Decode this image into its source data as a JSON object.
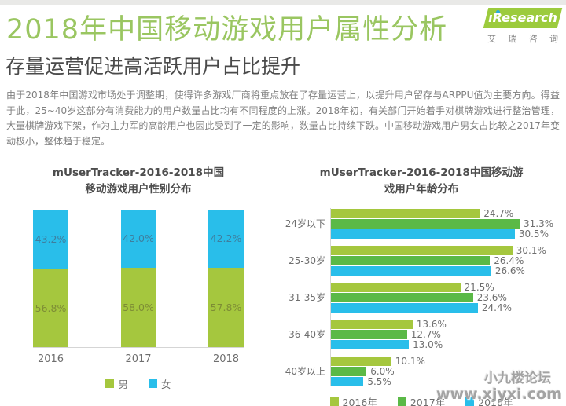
{
  "page": {
    "title": "2018年中国移动游戏用户属性分析",
    "subtitle": "存量运营促进高活跃用户占比提升",
    "paragraph": "由于2018年中国游戏市场处于调整期，使得许多游戏厂商将重点放在了存量运营上，以提升用户留存与ARPPU值为主要方向。得益于此，25~40岁这部分有消费能力的用户数量占比均有不同程度的上涨。2018年初，有关部门开始着手对棋牌游戏进行整治管理，大量棋牌游戏下架，作为主力军的高龄用户也因此受到了一定的影响，数量占比持续下跌。中国移动游戏用户男女占比较之2017年变动极小，整体趋于稳定。",
    "logo": {
      "brand": "ıResearch",
      "caption_chars": [
        "艾",
        "瑞",
        "咨",
        "询"
      ],
      "band_green": "#9CCB3D",
      "dot_blue": "#2BAADF"
    },
    "watermark": {
      "line1": "小九楼论坛",
      "line2": "www.xjyxi.com"
    }
  },
  "colors": {
    "title_green": "#9AC661",
    "subtitle_gray": "#4a4a4a",
    "axis_gray": "#d5d5d5",
    "label_gray": "#6e6e6e"
  },
  "chart_data": [
    {
      "type": "bar",
      "orientation": "vertical",
      "stacked": true,
      "title": [
        "mUserTracker-2016-2018中国",
        "移动游戏用户性别分布"
      ],
      "categories": [
        "2016",
        "2017",
        "2018"
      ],
      "series": [
        {
          "name": "男",
          "color": "#A5C73E",
          "label_color": "#7D8C35",
          "values": [
            56.8,
            58.0,
            57.8
          ]
        },
        {
          "name": "女",
          "color": "#29BEEA",
          "label_color": "#3E7E9E",
          "values": [
            43.2,
            42.0,
            42.2
          ]
        }
      ],
      "value_suffix": "%",
      "ylim": [
        0,
        100
      ],
      "grid": false,
      "legend_position": "bottom"
    },
    {
      "type": "bar",
      "orientation": "horizontal",
      "grouped": true,
      "title": [
        "mUserTracker-2016-2018中国移动游",
        "戏用户年龄分布"
      ],
      "categories": [
        "24岁以下",
        "25-30岁",
        "31-35岁",
        "36-40岁",
        "40岁以上"
      ],
      "series": [
        {
          "name": "2016年",
          "color": "#A5C73E",
          "values": [
            24.7,
            30.1,
            21.5,
            13.6,
            10.1
          ]
        },
        {
          "name": "2017年",
          "color": "#5BB947",
          "values": [
            31.3,
            26.4,
            23.6,
            12.7,
            6.0
          ]
        },
        {
          "name": "2018年",
          "color": "#29BEEA",
          "values": [
            30.5,
            26.6,
            24.4,
            13.0,
            5.5
          ]
        }
      ],
      "value_suffix": "%",
      "xlim": [
        0,
        33
      ],
      "grid": false,
      "legend_position": "bottom"
    }
  ]
}
